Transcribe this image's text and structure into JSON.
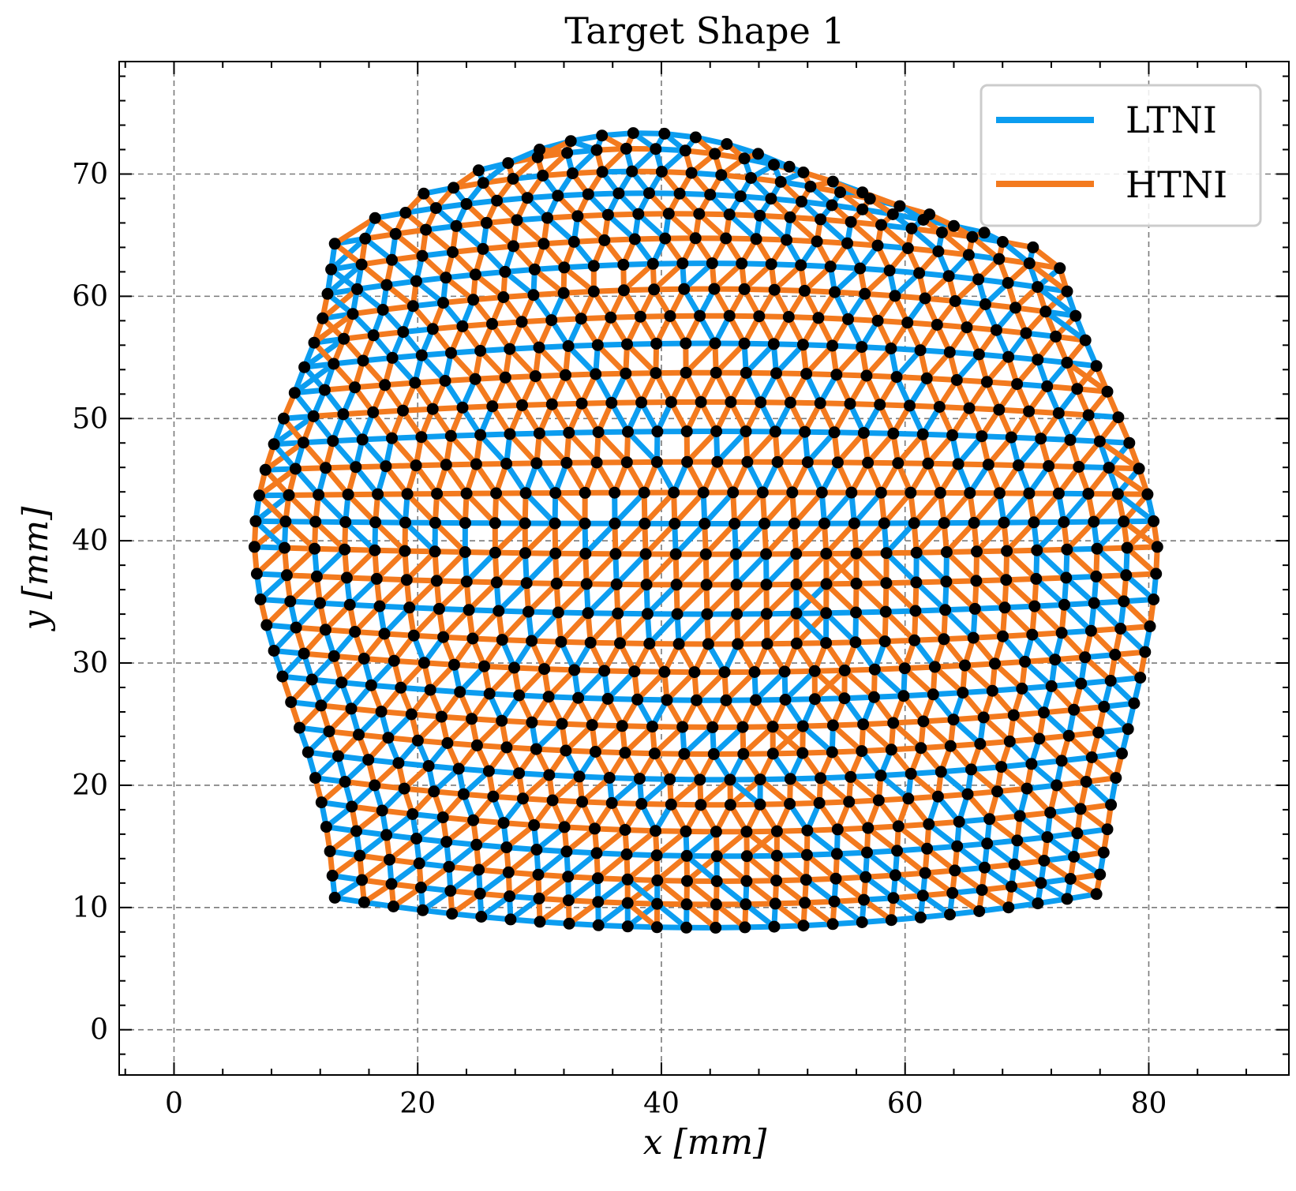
{
  "chart_data": {
    "type": "scatter",
    "title": "Target Shape 1",
    "xlabel": "x [mm]",
    "ylabel": "y [mm]",
    "xlim": [
      -4.5,
      91.5
    ],
    "ylim": [
      -3.7,
      79.2
    ],
    "xticks": [
      0,
      20,
      40,
      60,
      80
    ],
    "yticks": [
      0,
      10,
      20,
      30,
      40,
      50,
      60,
      70
    ],
    "xtick_labels": [
      "0",
      "20",
      "40",
      "60",
      "80"
    ],
    "ytick_labels": [
      "0",
      "10",
      "20",
      "30",
      "40",
      "50",
      "60",
      "70"
    ],
    "grid": true,
    "legend_position": "top-right",
    "mesh": {
      "description": "triangular lattice of nodes filling a roughly circular region",
      "rows": [
        {
          "y_left": 10.8,
          "y_right": 11.1,
          "x_left": 13.2,
          "x_right": 75.7,
          "sag": 2.6
        },
        {
          "y_left": 12.6,
          "y_right": 12.7,
          "x_left": 13.0,
          "x_right": 76.0,
          "sag": 2.4
        },
        {
          "y_left": 14.6,
          "y_right": 14.5,
          "x_left": 12.8,
          "x_right": 76.3,
          "sag": 2.4
        },
        {
          "y_left": 16.6,
          "y_right": 16.4,
          "x_left": 12.5,
          "x_right": 76.6,
          "sag": 2.3
        },
        {
          "y_left": 18.6,
          "y_right": 18.4,
          "x_left": 12.1,
          "x_right": 76.9,
          "sag": 2.3
        },
        {
          "y_left": 20.6,
          "y_right": 20.6,
          "x_left": 11.6,
          "x_right": 77.3,
          "sag": 2.2
        },
        {
          "y_left": 22.7,
          "y_right": 22.6,
          "x_left": 11.0,
          "x_right": 77.8,
          "sag": 2.2
        },
        {
          "y_left": 24.7,
          "y_right": 24.6,
          "x_left": 10.3,
          "x_right": 78.3,
          "sag": 2.1
        },
        {
          "y_left": 26.8,
          "y_right": 26.7,
          "x_left": 9.6,
          "x_right": 78.8,
          "sag": 2.0
        },
        {
          "y_left": 28.9,
          "y_right": 28.8,
          "x_left": 8.9,
          "x_right": 79.3,
          "sag": 1.9
        },
        {
          "y_left": 31.0,
          "y_right": 30.9,
          "x_left": 8.2,
          "x_right": 79.7,
          "sag": 1.7
        },
        {
          "y_left": 33.1,
          "y_right": 33.0,
          "x_left": 7.6,
          "x_right": 80.1,
          "sag": 1.5
        },
        {
          "y_left": 35.2,
          "y_right": 35.2,
          "x_left": 7.1,
          "x_right": 80.4,
          "sag": 1.2
        },
        {
          "y_left": 37.3,
          "y_right": 37.3,
          "x_left": 6.8,
          "x_right": 80.6,
          "sag": 0.9
        },
        {
          "y_left": 39.5,
          "y_right": 39.5,
          "x_left": 6.6,
          "x_right": 80.7,
          "sag": 0.6
        },
        {
          "y_left": 41.6,
          "y_right": 41.6,
          "x_left": 6.7,
          "x_right": 80.4,
          "sag": 0.2
        },
        {
          "y_left": 43.7,
          "y_right": 43.8,
          "x_left": 7.0,
          "x_right": 79.9,
          "sag": -0.2
        },
        {
          "y_left": 45.8,
          "y_right": 45.9,
          "x_left": 7.5,
          "x_right": 79.2,
          "sag": -0.6
        },
        {
          "y_left": 47.9,
          "y_right": 48.0,
          "x_left": 8.2,
          "x_right": 78.4,
          "sag": -1.0
        },
        {
          "y_left": 50.0,
          "y_right": 50.1,
          "x_left": 9.0,
          "x_right": 77.5,
          "sag": -1.3
        },
        {
          "y_left": 52.1,
          "y_right": 52.2,
          "x_left": 9.9,
          "x_right": 76.6,
          "sag": -1.6
        },
        {
          "y_left": 54.2,
          "y_right": 54.3,
          "x_left": 10.7,
          "x_right": 75.7,
          "sag": -1.9
        },
        {
          "y_left": 56.2,
          "y_right": 56.4,
          "x_left": 11.5,
          "x_right": 74.8,
          "sag": -2.1
        },
        {
          "y_left": 58.2,
          "y_right": 58.4,
          "x_left": 12.2,
          "x_right": 74.0,
          "sag": -2.3
        },
        {
          "y_left": 60.2,
          "y_right": 60.4,
          "x_left": 12.6,
          "x_right": 73.3,
          "sag": -2.4
        },
        {
          "y_left": 62.2,
          "y_right": 62.3,
          "x_left": 12.9,
          "x_right": 72.7,
          "sag": -2.5
        },
        {
          "y_left": 64.3,
          "y_right": 64.0,
          "x_left": 13.2,
          "x_right": 70.5,
          "sag": -2.6
        },
        {
          "y_left": 66.4,
          "y_right": 65.2,
          "x_left": 16.5,
          "x_right": 66.5,
          "sag": -2.6
        },
        {
          "y_left": 68.4,
          "y_right": 66.7,
          "x_left": 20.5,
          "x_right": 62.0,
          "sag": -2.6
        },
        {
          "y_left": 70.3,
          "y_right": 68.5,
          "x_left": 25.0,
          "x_right": 56.5,
          "sag": -2.6
        },
        {
          "y_left": 72.0,
          "y_right": 70.6,
          "x_left": 30.0,
          "x_right": 50.5,
          "sag": -2.0
        }
      ]
    },
    "legend": [
      {
        "name": "LTNI",
        "color": "#0c9df0"
      },
      {
        "name": "HTNI",
        "color": "#f37a1e"
      }
    ]
  },
  "colors": {
    "ltni": "#0c9df0",
    "htni": "#f37a1e",
    "node": "#000000",
    "grid": "#7a7a7a"
  }
}
